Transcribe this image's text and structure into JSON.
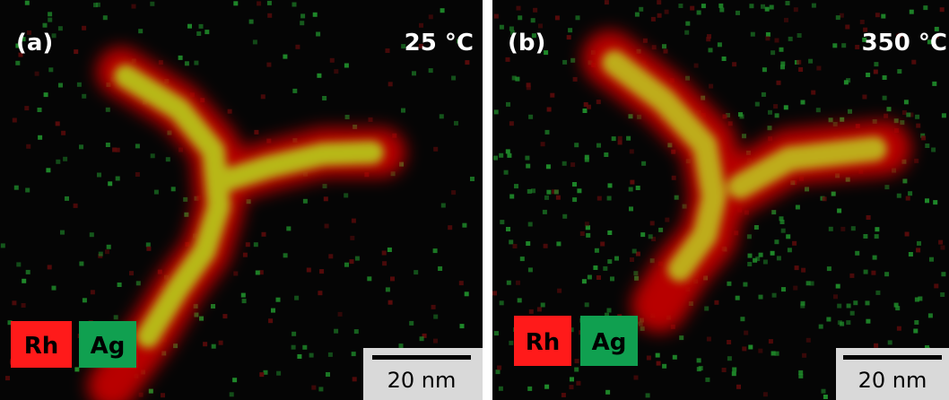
{
  "panels": [
    {
      "label": "(a)",
      "temperature": "25 °C",
      "legend": [
        "Rh",
        "Ag"
      ],
      "scale_bar": "20 nm"
    },
    {
      "label": "(b)",
      "temperature": "350 °C",
      "legend": [
        "Rh",
        "Ag"
      ],
      "scale_bar": "20 nm"
    }
  ]
}
